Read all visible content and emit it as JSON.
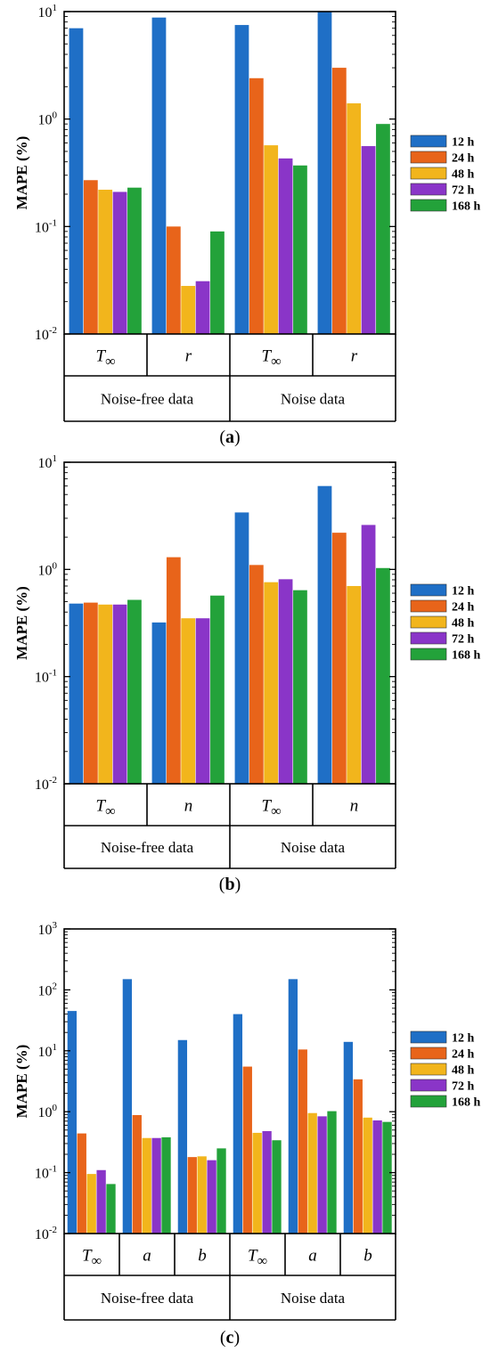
{
  "colors": {
    "12 h": "#1f6fc6",
    "24 h": "#e8641a",
    "48 h": "#f2b51c",
    "72 h": "#8a35c8",
    "168 h": "#23a23a"
  },
  "chart_data": [
    {
      "type": "bar",
      "panel_label": "(a)",
      "ylabel": "MAPE (%)",
      "yscale": "log",
      "ylim": [
        0.01,
        10
      ],
      "yticks": [
        {
          "base": "10",
          "exp": "-2"
        },
        {
          "base": "10",
          "exp": "-1"
        },
        {
          "base": "10",
          "exp": "0"
        },
        {
          "base": "10",
          "exp": "1"
        }
      ],
      "groups": [
        {
          "label": "T∞",
          "label_base": "T",
          "label_sub": "∞",
          "parent": "Noise-free data"
        },
        {
          "label": "r",
          "label_base": "r",
          "label_sub": "",
          "parent": "Noise-free data"
        },
        {
          "label": "T∞",
          "label_base": "T",
          "label_sub": "∞",
          "parent": "Noise data"
        },
        {
          "label": "r",
          "label_base": "r",
          "label_sub": "",
          "parent": "Noise data"
        }
      ],
      "parents": [
        "Noise-free data",
        "Noise data"
      ],
      "series": [
        {
          "name": "12 h",
          "values": [
            7.0,
            8.8,
            7.5,
            10.0
          ]
        },
        {
          "name": "24 h",
          "values": [
            0.27,
            0.1,
            2.4,
            3.0
          ]
        },
        {
          "name": "48 h",
          "values": [
            0.22,
            0.028,
            0.57,
            1.4
          ]
        },
        {
          "name": "72 h",
          "values": [
            0.21,
            0.031,
            0.43,
            0.56
          ]
        },
        {
          "name": "168 h",
          "values": [
            0.23,
            0.09,
            0.37,
            0.9
          ]
        }
      ]
    },
    {
      "type": "bar",
      "panel_label": "(b)",
      "ylabel": "MAPE (%)",
      "yscale": "log",
      "ylim": [
        0.01,
        10
      ],
      "yticks": [
        {
          "base": "10",
          "exp": "-2"
        },
        {
          "base": "10",
          "exp": "-1"
        },
        {
          "base": "10",
          "exp": "0"
        },
        {
          "base": "10",
          "exp": "1"
        }
      ],
      "groups": [
        {
          "label": "T∞",
          "label_base": "T",
          "label_sub": "∞",
          "parent": "Noise-free data"
        },
        {
          "label": "n",
          "label_base": "n",
          "label_sub": "",
          "parent": "Noise-free data"
        },
        {
          "label": "T∞",
          "label_base": "T",
          "label_sub": "∞",
          "parent": "Noise data"
        },
        {
          "label": "n",
          "label_base": "n",
          "label_sub": "",
          "parent": "Noise data"
        }
      ],
      "parents": [
        "Noise-free data",
        "Noise data"
      ],
      "series": [
        {
          "name": "12 h",
          "values": [
            0.48,
            0.32,
            3.4,
            6.0
          ]
        },
        {
          "name": "24 h",
          "values": [
            0.49,
            1.3,
            1.1,
            2.2
          ]
        },
        {
          "name": "48 h",
          "values": [
            0.47,
            0.35,
            0.76,
            0.7
          ]
        },
        {
          "name": "72 h",
          "values": [
            0.47,
            0.35,
            0.81,
            2.6
          ]
        },
        {
          "name": "168 h",
          "values": [
            0.52,
            0.57,
            0.64,
            1.03
          ]
        }
      ]
    },
    {
      "type": "bar",
      "panel_label": "(c)",
      "ylabel": "MAPE (%)",
      "yscale": "log",
      "ylim": [
        0.01,
        1000
      ],
      "yticks": [
        {
          "base": "10",
          "exp": "-2"
        },
        {
          "base": "10",
          "exp": "-1"
        },
        {
          "base": "10",
          "exp": "0"
        },
        {
          "base": "10",
          "exp": "1"
        },
        {
          "base": "10",
          "exp": "2"
        },
        {
          "base": "10",
          "exp": "3"
        }
      ],
      "groups": [
        {
          "label": "T∞",
          "label_base": "T",
          "label_sub": "∞",
          "parent": "Noise-free data"
        },
        {
          "label": "a",
          "label_base": "a",
          "label_sub": "",
          "parent": "Noise-free data"
        },
        {
          "label": "b",
          "label_base": "b",
          "label_sub": "",
          "parent": "Noise-free data"
        },
        {
          "label": "T∞",
          "label_base": "T",
          "label_sub": "∞",
          "parent": "Noise data"
        },
        {
          "label": "a",
          "label_base": "a",
          "label_sub": "",
          "parent": "Noise data"
        },
        {
          "label": "b",
          "label_base": "b",
          "label_sub": "",
          "parent": "Noise data"
        }
      ],
      "parents": [
        "Noise-free data",
        "Noise data"
      ],
      "series": [
        {
          "name": "12 h",
          "values": [
            45,
            150,
            15,
            40,
            150,
            14
          ]
        },
        {
          "name": "24 h",
          "values": [
            0.44,
            0.88,
            0.18,
            5.5,
            10.5,
            3.4
          ]
        },
        {
          "name": "48 h",
          "values": [
            0.095,
            0.37,
            0.185,
            0.45,
            0.95,
            0.8
          ]
        },
        {
          "name": "72 h",
          "values": [
            0.11,
            0.37,
            0.16,
            0.48,
            0.84,
            0.72
          ]
        },
        {
          "name": "168 h",
          "values": [
            0.065,
            0.38,
            0.25,
            0.34,
            1.02,
            0.68
          ]
        }
      ]
    }
  ]
}
